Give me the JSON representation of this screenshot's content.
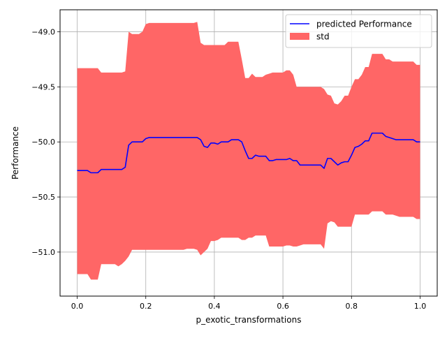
{
  "chart_data": {
    "type": "line",
    "title": "",
    "xlabel": "p_exotic_transformations",
    "ylabel": "Performance",
    "xlim": [
      -0.05,
      1.05
    ],
    "ylim": [
      -51.4,
      -48.8
    ],
    "x_ticks": [
      0.0,
      0.2,
      0.4,
      0.6,
      0.8,
      1.0
    ],
    "x_tick_labels": [
      "0.0",
      "0.2",
      "0.4",
      "0.6",
      "0.8",
      "1.0"
    ],
    "y_ticks": [
      -51.0,
      -50.5,
      -50.0,
      -49.5,
      -49.0
    ],
    "y_tick_labels": [
      "−51.0",
      "−50.5",
      "−50.0",
      "−49.5",
      "−49.0"
    ],
    "grid": true,
    "legend_position": "upper-right",
    "x": [
      0.0,
      0.01,
      0.02,
      0.03,
      0.04,
      0.05,
      0.06,
      0.07,
      0.08,
      0.09,
      0.1,
      0.11,
      0.12,
      0.13,
      0.14,
      0.15,
      0.16,
      0.17,
      0.18,
      0.19,
      0.2,
      0.21,
      0.22,
      0.23,
      0.24,
      0.25,
      0.26,
      0.27,
      0.28,
      0.29,
      0.3,
      0.31,
      0.32,
      0.33,
      0.34,
      0.35,
      0.36,
      0.37,
      0.38,
      0.39,
      0.4,
      0.41,
      0.42,
      0.43,
      0.44,
      0.45,
      0.46,
      0.47,
      0.48,
      0.49,
      0.5,
      0.51,
      0.52,
      0.53,
      0.54,
      0.55,
      0.56,
      0.57,
      0.58,
      0.59,
      0.6,
      0.61,
      0.62,
      0.63,
      0.64,
      0.65,
      0.66,
      0.67,
      0.68,
      0.69,
      0.7,
      0.71,
      0.72,
      0.73,
      0.74,
      0.75,
      0.76,
      0.77,
      0.78,
      0.79,
      0.8,
      0.81,
      0.82,
      0.83,
      0.84,
      0.85,
      0.86,
      0.87,
      0.88,
      0.89,
      0.9,
      0.91,
      0.92,
      0.93,
      0.94,
      0.95,
      0.96,
      0.97,
      0.98,
      0.99,
      1.0
    ],
    "series": [
      {
        "name": "predicted Performance",
        "color": "#0000ff",
        "values": [
          -50.26,
          -50.26,
          -50.26,
          -50.26,
          -50.28,
          -50.28,
          -50.28,
          -50.25,
          -50.25,
          -50.25,
          -50.25,
          -50.25,
          -50.25,
          -50.25,
          -50.23,
          -50.03,
          -50.0,
          -50.0,
          -50.0,
          -50.0,
          -49.97,
          -49.96,
          -49.96,
          -49.96,
          -49.96,
          -49.96,
          -49.96,
          -49.96,
          -49.96,
          -49.96,
          -49.96,
          -49.96,
          -49.96,
          -49.96,
          -49.96,
          -49.96,
          -49.98,
          -50.04,
          -50.05,
          -50.01,
          -50.01,
          -50.02,
          -50.0,
          -50.0,
          -50.0,
          -49.98,
          -49.98,
          -49.98,
          -50.0,
          -50.08,
          -50.15,
          -50.15,
          -50.12,
          -50.13,
          -50.13,
          -50.13,
          -50.17,
          -50.17,
          -50.16,
          -50.16,
          -50.16,
          -50.16,
          -50.15,
          -50.17,
          -50.17,
          -50.21,
          -50.21,
          -50.21,
          -50.21,
          -50.21,
          -50.21,
          -50.21,
          -50.24,
          -50.15,
          -50.15,
          -50.18,
          -50.21,
          -50.19,
          -50.18,
          -50.18,
          -50.12,
          -50.05,
          -50.04,
          -50.02,
          -49.99,
          -49.99,
          -49.92,
          -49.92,
          -49.92,
          -49.92,
          -49.95,
          -49.96,
          -49.97,
          -49.98,
          -49.98,
          -49.98,
          -49.98,
          -49.98,
          -49.98,
          -50.0,
          -50.0
        ]
      }
    ],
    "band": {
      "name": "std",
      "color": "#ff6666",
      "upper": [
        -49.33,
        -49.33,
        -49.33,
        -49.33,
        -49.33,
        -49.33,
        -49.33,
        -49.37,
        -49.37,
        -49.37,
        -49.37,
        -49.37,
        -49.37,
        -49.37,
        -49.36,
        -49.0,
        -49.02,
        -49.02,
        -49.02,
        -49.0,
        -48.93,
        -48.92,
        -48.92,
        -48.92,
        -48.92,
        -48.92,
        -48.92,
        -48.92,
        -48.92,
        -48.92,
        -48.92,
        -48.92,
        -48.92,
        -48.92,
        -48.92,
        -48.91,
        -49.1,
        -49.12,
        -49.12,
        -49.12,
        -49.12,
        -49.12,
        -49.12,
        -49.12,
        -49.09,
        -49.09,
        -49.09,
        -49.09,
        -49.25,
        -49.42,
        -49.42,
        -49.38,
        -49.41,
        -49.41,
        -49.41,
        -49.39,
        -49.38,
        -49.37,
        -49.37,
        -49.37,
        -49.37,
        -49.35,
        -49.35,
        -49.39,
        -49.5,
        -49.5,
        -49.5,
        -49.5,
        -49.5,
        -49.5,
        -49.5,
        -49.5,
        -49.52,
        -49.57,
        -49.58,
        -49.65,
        -49.66,
        -49.63,
        -49.58,
        -49.58,
        -49.5,
        -49.43,
        -49.43,
        -49.39,
        -49.32,
        -49.32,
        -49.2,
        -49.2,
        -49.2,
        -49.2,
        -49.25,
        -49.25,
        -49.27,
        -49.27,
        -49.27,
        -49.27,
        -49.27,
        -49.27,
        -49.27,
        -49.3,
        -49.3
      ],
      "lower": [
        -51.2,
        -51.2,
        -51.2,
        -51.2,
        -51.25,
        -51.25,
        -51.25,
        -51.11,
        -51.11,
        -51.11,
        -51.11,
        -51.11,
        -51.13,
        -51.11,
        -51.08,
        -51.04,
        -50.98,
        -50.98,
        -50.98,
        -50.98,
        -50.98,
        -50.98,
        -50.98,
        -50.98,
        -50.98,
        -50.98,
        -50.98,
        -50.98,
        -50.98,
        -50.98,
        -50.98,
        -50.98,
        -50.97,
        -50.97,
        -50.97,
        -50.98,
        -51.03,
        -51.0,
        -50.97,
        -50.9,
        -50.9,
        -50.89,
        -50.87,
        -50.87,
        -50.87,
        -50.87,
        -50.87,
        -50.87,
        -50.89,
        -50.89,
        -50.87,
        -50.87,
        -50.85,
        -50.85,
        -50.85,
        -50.85,
        -50.95,
        -50.95,
        -50.95,
        -50.95,
        -50.95,
        -50.94,
        -50.94,
        -50.95,
        -50.95,
        -50.94,
        -50.93,
        -50.93,
        -50.93,
        -50.93,
        -50.93,
        -50.93,
        -50.97,
        -50.74,
        -50.72,
        -50.73,
        -50.77,
        -50.77,
        -50.77,
        -50.77,
        -50.77,
        -50.66,
        -50.66,
        -50.66,
        -50.66,
        -50.66,
        -50.63,
        -50.63,
        -50.63,
        -50.63,
        -50.66,
        -50.66,
        -50.66,
        -50.67,
        -50.68,
        -50.68,
        -50.68,
        -50.68,
        -50.68,
        -50.7,
        -50.7
      ]
    }
  }
}
